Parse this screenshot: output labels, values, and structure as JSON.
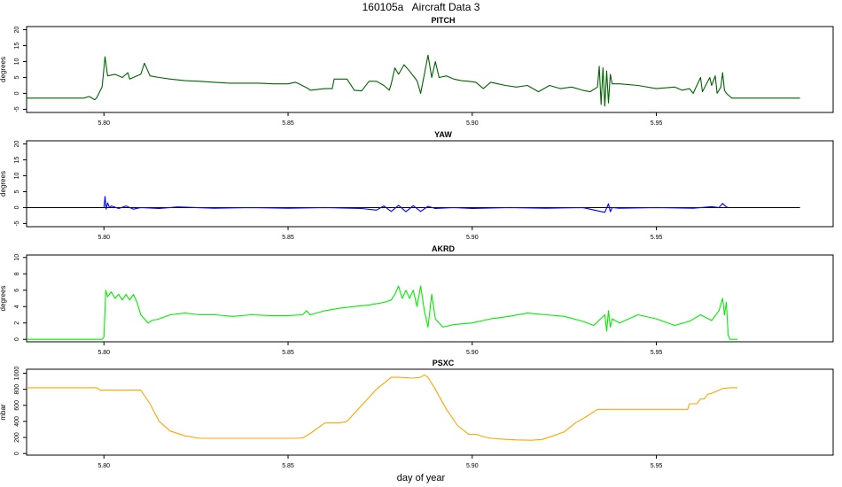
{
  "chart_data": {
    "title": "160105a   Aircraft Data 3",
    "xlabel": "day of year",
    "type": "line",
    "panels": [
      {
        "title": "PITCH",
        "ylabel": "degrees",
        "ylim": [
          -6,
          21
        ],
        "yticks": [
          -5,
          0,
          5,
          10,
          15,
          20
        ],
        "color": "#006400",
        "zero_line": false,
        "xlim": [
          5.779,
          5.998
        ],
        "xticks": [
          5.8,
          5.85,
          5.9,
          5.95
        ],
        "xtick_labels": [
          "5.80",
          "5.85",
          "5.90",
          "5.95"
        ],
        "series": {
          "x": [
            5.779,
            5.7945,
            5.796,
            5.7975,
            5.798,
            5.7995,
            5.8,
            5.8003,
            5.801,
            5.803,
            5.805,
            5.8065,
            5.807,
            5.81,
            5.811,
            5.8125,
            5.815,
            5.818,
            5.822,
            5.826,
            5.83,
            5.834,
            5.838,
            5.842,
            5.846,
            5.85,
            5.852,
            5.853,
            5.8555,
            5.856,
            5.86,
            5.862,
            5.8625,
            5.866,
            5.868,
            5.87,
            5.872,
            5.874,
            5.876,
            5.8775,
            5.878,
            5.879,
            5.88,
            5.8815,
            5.883,
            5.885,
            5.886,
            5.887,
            5.888,
            5.889,
            5.89,
            5.891,
            5.893,
            5.895,
            5.897,
            5.899,
            5.901,
            5.903,
            5.905,
            5.907,
            5.909,
            5.912,
            5.915,
            5.918,
            5.921,
            5.924,
            5.927,
            5.93,
            5.932,
            5.934,
            5.9345,
            5.935,
            5.9355,
            5.936,
            5.9365,
            5.937,
            5.9375,
            5.938,
            5.94,
            5.945,
            5.95,
            5.955,
            5.957,
            5.959,
            5.96,
            5.962,
            5.9625,
            5.9645,
            5.965,
            5.966,
            5.9665,
            5.9675,
            5.968,
            5.9685,
            5.969,
            5.97,
            5.9705,
            5.971,
            5.98,
            5.989
          ],
          "y": [
            -1.5,
            -1.5,
            -1.0,
            -2.0,
            -1.5,
            2.0,
            8.0,
            11.5,
            5.5,
            6.0,
            5.0,
            6.5,
            4.5,
            6.0,
            9.5,
            5.5,
            5.0,
            4.5,
            4.0,
            3.8,
            3.5,
            3.2,
            3.2,
            3.2,
            3.0,
            3.0,
            3.5,
            3.0,
            1.5,
            1.0,
            1.5,
            1.5,
            4.5,
            4.5,
            1.0,
            0.8,
            3.8,
            3.8,
            2.5,
            1.0,
            3.0,
            8.0,
            6.0,
            9.0,
            7.0,
            4.0,
            0.0,
            6.0,
            12.0,
            5.0,
            10.0,
            5.0,
            5.5,
            4.5,
            4.0,
            3.8,
            3.5,
            1.5,
            3.5,
            3.0,
            2.5,
            2.0,
            2.5,
            0.5,
            2.5,
            1.5,
            2.0,
            1.0,
            0.5,
            2.0,
            8.5,
            -3.5,
            8.0,
            -4.0,
            7.0,
            -3.0,
            6.0,
            3.0,
            3.0,
            2.5,
            1.5,
            2.0,
            1.0,
            1.5,
            0.0,
            5.0,
            0.5,
            5.0,
            2.5,
            5.5,
            0.0,
            2.0,
            6.5,
            1.0,
            0.0,
            -1.0,
            -1.5,
            -1.5,
            -1.5,
            -1.5
          ]
        }
      },
      {
        "title": "YAW",
        "ylabel": "degrees",
        "ylim": [
          -6,
          21
        ],
        "yticks": [
          -5,
          0,
          5,
          10,
          15,
          20
        ],
        "color": "#0000ff",
        "zero_line": true,
        "xlim": [
          5.779,
          5.998
        ],
        "xticks": [
          5.8,
          5.85,
          5.9,
          5.95
        ],
        "xtick_labels": [
          "5.80",
          "5.85",
          "5.90",
          "5.95"
        ],
        "series": {
          "x": [
            5.8,
            5.8003,
            5.8006,
            5.801,
            5.8015,
            5.802,
            5.804,
            5.806,
            5.808,
            5.81,
            5.815,
            5.82,
            5.83,
            5.84,
            5.85,
            5.86,
            5.87,
            5.874,
            5.876,
            5.878,
            5.88,
            5.882,
            5.884,
            5.886,
            5.888,
            5.89,
            5.895,
            5.9,
            5.91,
            5.92,
            5.93,
            5.936,
            5.937,
            5.9375,
            5.938,
            5.94,
            5.95,
            5.96,
            5.965,
            5.967,
            5.968,
            5.969,
            5.9695
          ],
          "y": [
            0.0,
            3.5,
            -0.5,
            1.5,
            0.0,
            0.5,
            -0.3,
            0.5,
            -0.5,
            0.0,
            -0.3,
            0.2,
            -0.2,
            0.0,
            -0.2,
            0.0,
            -0.3,
            -0.8,
            0.5,
            -1.2,
            0.7,
            -1.3,
            0.6,
            -1.2,
            0.4,
            -0.3,
            0.0,
            -0.3,
            0.0,
            -0.2,
            0.0,
            -1.5,
            1.2,
            -1.3,
            0.0,
            -0.2,
            0.0,
            -0.2,
            0.3,
            0.0,
            1.3,
            0.2,
            0.0
          ]
        }
      },
      {
        "title": "AKRD",
        "ylabel": "degrees",
        "ylim": [
          -0.3,
          10.3
        ],
        "yticks": [
          0,
          2,
          4,
          6,
          8,
          10
        ],
        "color": "#00ee00",
        "zero_line": false,
        "xlim": [
          5.779,
          5.998
        ],
        "xticks": [
          5.8,
          5.85,
          5.9,
          5.95
        ],
        "xtick_labels": [
          "5.80",
          "5.85",
          "5.90",
          "5.95"
        ],
        "series": {
          "x": [
            5.779,
            5.7995,
            5.8,
            5.8005,
            5.801,
            5.802,
            5.803,
            5.804,
            5.805,
            5.806,
            5.807,
            5.808,
            5.809,
            5.81,
            5.811,
            5.812,
            5.813,
            5.815,
            5.818,
            5.822,
            5.826,
            5.83,
            5.835,
            5.84,
            5.845,
            5.85,
            5.854,
            5.855,
            5.856,
            5.86,
            5.864,
            5.868,
            5.872,
            5.876,
            5.878,
            5.879,
            5.88,
            5.881,
            5.882,
            5.883,
            5.884,
            5.885,
            5.886,
            5.887,
            5.888,
            5.889,
            5.89,
            5.891,
            5.892,
            5.895,
            5.9,
            5.905,
            5.91,
            5.915,
            5.92,
            5.925,
            5.93,
            5.933,
            5.936,
            5.9365,
            5.937,
            5.9375,
            5.938,
            5.94,
            5.945,
            5.95,
            5.955,
            5.959,
            5.962,
            5.965,
            5.967,
            5.968,
            5.9685,
            5.969,
            5.9695,
            5.97,
            5.972
          ],
          "y": [
            0.0,
            0.0,
            0.3,
            6.0,
            5.2,
            5.8,
            5.0,
            5.5,
            4.8,
            5.5,
            4.8,
            5.5,
            4.5,
            3.0,
            2.5,
            2.0,
            2.3,
            2.5,
            3.0,
            3.2,
            3.0,
            3.0,
            2.8,
            3.0,
            2.9,
            2.9,
            3.0,
            3.5,
            3.0,
            3.5,
            3.8,
            4.0,
            4.2,
            4.5,
            4.8,
            5.5,
            6.5,
            5.0,
            6.0,
            5.0,
            6.0,
            4.0,
            6.5,
            3.5,
            1.5,
            5.5,
            2.5,
            2.0,
            1.5,
            1.8,
            2.0,
            2.5,
            2.8,
            3.2,
            3.0,
            2.8,
            2.2,
            1.7,
            3.0,
            1.0,
            3.5,
            1.5,
            2.5,
            2.0,
            3.0,
            2.5,
            1.7,
            2.2,
            3.0,
            2.3,
            3.5,
            5.0,
            3.0,
            4.5,
            0.5,
            0.0,
            0.0
          ]
        }
      },
      {
        "title": "PSXC",
        "ylabel": "mbar",
        "ylim": [
          -20,
          1050
        ],
        "yticks": [
          0,
          200,
          400,
          600,
          800,
          1000
        ],
        "ytick_labels": [
          "0",
          "200",
          "400",
          "600",
          "800",
          "1000"
        ],
        "color": "#ffa500",
        "zero_line": false,
        "xlim": [
          5.779,
          5.998
        ],
        "xticks": [
          5.8,
          5.85,
          5.9,
          5.95
        ],
        "xtick_labels": [
          "5.80",
          "5.85",
          "5.90",
          "5.95"
        ],
        "series": {
          "x": [
            5.779,
            5.798,
            5.799,
            5.81,
            5.8125,
            5.815,
            5.818,
            5.822,
            5.826,
            5.83,
            5.835,
            5.84,
            5.845,
            5.85,
            5.852,
            5.854,
            5.856,
            5.86,
            5.864,
            5.866,
            5.87,
            5.874,
            5.878,
            5.88,
            5.884,
            5.886,
            5.887,
            5.888,
            5.89,
            5.893,
            5.896,
            5.899,
            5.901,
            5.903,
            5.905,
            5.908,
            5.912,
            5.916,
            5.919,
            5.922,
            5.925,
            5.928,
            5.931,
            5.934,
            5.94,
            5.945,
            5.95,
            5.955,
            5.9585,
            5.959,
            5.961,
            5.962,
            5.963,
            5.964,
            5.965,
            5.967,
            5.968,
            5.97,
            5.972
          ],
          "y": [
            820,
            820,
            790,
            790,
            620,
            400,
            280,
            220,
            190,
            190,
            190,
            190,
            190,
            190,
            190,
            195,
            250,
            380,
            380,
            400,
            600,
            800,
            950,
            950,
            940,
            950,
            980,
            950,
            800,
            550,
            350,
            240,
            240,
            210,
            190,
            180,
            170,
            165,
            175,
            220,
            270,
            380,
            460,
            550,
            550,
            550,
            550,
            550,
            550,
            620,
            620,
            680,
            680,
            740,
            750,
            790,
            810,
            820,
            820
          ]
        }
      }
    ]
  }
}
